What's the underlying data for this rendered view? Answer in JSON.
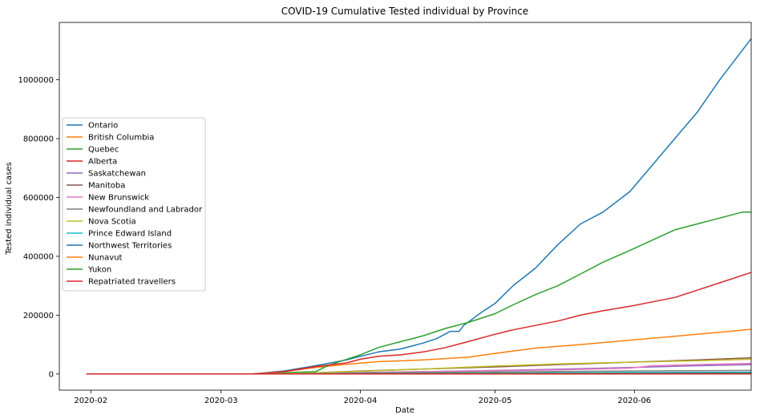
{
  "chart_data": {
    "type": "line",
    "title": "COVID-19 Cumulative Tested individual by Province",
    "xlabel": "Date",
    "ylabel": "Tested individual cases",
    "x_range": [
      "2020-01-25",
      "2020-06-27"
    ],
    "ylim": [
      -55000,
      1195000
    ],
    "x_ticks": [
      {
        "date": "2020-02-01",
        "label": "2020-02"
      },
      {
        "date": "2020-03-01",
        "label": "2020-03"
      },
      {
        "date": "2020-04-01",
        "label": "2020-04"
      },
      {
        "date": "2020-05-01",
        "label": "2020-05"
      },
      {
        "date": "2020-06-01",
        "label": "2020-06"
      }
    ],
    "y_ticks": [
      {
        "value": 0,
        "label": "0"
      },
      {
        "value": 200000,
        "label": "200000"
      },
      {
        "value": 400000,
        "label": "400000"
      },
      {
        "value": 600000,
        "label": "600000"
      },
      {
        "value": 800000,
        "label": "800000"
      },
      {
        "value": 1000000,
        "label": "1000000"
      }
    ],
    "grid": false,
    "legend_position": "center-left",
    "series": [
      {
        "name": "Ontario",
        "color": "#1f77b4",
        "points": [
          [
            "2020-01-31",
            0
          ],
          [
            "2020-03-01",
            0
          ],
          [
            "2020-03-08",
            0
          ],
          [
            "2020-03-15",
            10000
          ],
          [
            "2020-03-22",
            28000
          ],
          [
            "2020-03-29",
            48000
          ],
          [
            "2020-04-01",
            60000
          ],
          [
            "2020-04-05",
            75000
          ],
          [
            "2020-04-10",
            85000
          ],
          [
            "2020-04-15",
            105000
          ],
          [
            "2020-04-18",
            120000
          ],
          [
            "2020-04-21",
            145000
          ],
          [
            "2020-04-23",
            145000
          ],
          [
            "2020-04-24",
            165000
          ],
          [
            "2020-04-28",
            210000
          ],
          [
            "2020-05-01",
            240000
          ],
          [
            "2020-05-05",
            300000
          ],
          [
            "2020-05-10",
            360000
          ],
          [
            "2020-05-15",
            440000
          ],
          [
            "2020-05-20",
            510000
          ],
          [
            "2020-05-25",
            550000
          ],
          [
            "2020-05-31",
            620000
          ],
          [
            "2020-06-05",
            710000
          ],
          [
            "2020-06-10",
            800000
          ],
          [
            "2020-06-15",
            890000
          ],
          [
            "2020-06-20",
            1000000
          ],
          [
            "2020-06-25",
            1100000
          ],
          [
            "2020-06-27",
            1140000
          ]
        ]
      },
      {
        "name": "British Columbia",
        "color": "#ff7f0e",
        "points": [
          [
            "2020-01-31",
            0
          ],
          [
            "2020-03-01",
            0
          ],
          [
            "2020-03-08",
            0
          ],
          [
            "2020-03-15",
            8000
          ],
          [
            "2020-03-22",
            22000
          ],
          [
            "2020-03-29",
            33000
          ],
          [
            "2020-04-05",
            42000
          ],
          [
            "2020-04-15",
            48000
          ],
          [
            "2020-04-25",
            57000
          ],
          [
            "2020-05-01",
            70000
          ],
          [
            "2020-05-10",
            88000
          ],
          [
            "2020-05-20",
            100000
          ],
          [
            "2020-05-31",
            115000
          ],
          [
            "2020-06-10",
            128000
          ],
          [
            "2020-06-20",
            142000
          ],
          [
            "2020-06-27",
            152000
          ]
        ]
      },
      {
        "name": "Quebec",
        "color": "#2ca02c",
        "points": [
          [
            "2020-01-31",
            0
          ],
          [
            "2020-03-01",
            0
          ],
          [
            "2020-03-08",
            0
          ],
          [
            "2020-03-15",
            4000
          ],
          [
            "2020-03-22",
            8000
          ],
          [
            "2020-03-25",
            30000
          ],
          [
            "2020-03-29",
            50000
          ],
          [
            "2020-04-01",
            65000
          ],
          [
            "2020-04-05",
            90000
          ],
          [
            "2020-04-10",
            110000
          ],
          [
            "2020-04-15",
            130000
          ],
          [
            "2020-04-20",
            155000
          ],
          [
            "2020-04-25",
            175000
          ],
          [
            "2020-05-01",
            205000
          ],
          [
            "2020-05-05",
            235000
          ],
          [
            "2020-05-10",
            270000
          ],
          [
            "2020-05-15",
            300000
          ],
          [
            "2020-05-20",
            340000
          ],
          [
            "2020-05-25",
            380000
          ],
          [
            "2020-05-31",
            420000
          ],
          [
            "2020-06-05",
            455000
          ],
          [
            "2020-06-10",
            490000
          ],
          [
            "2020-06-15",
            510000
          ],
          [
            "2020-06-20",
            530000
          ],
          [
            "2020-06-25",
            550000
          ],
          [
            "2020-06-27",
            550000
          ]
        ]
      },
      {
        "name": "Alberta",
        "color": "#d62728",
        "points": [
          [
            "2020-01-31",
            0
          ],
          [
            "2020-03-01",
            0
          ],
          [
            "2020-03-08",
            0
          ],
          [
            "2020-03-15",
            8000
          ],
          [
            "2020-03-22",
            25000
          ],
          [
            "2020-03-29",
            38000
          ],
          [
            "2020-04-01",
            50000
          ],
          [
            "2020-04-05",
            60000
          ],
          [
            "2020-04-10",
            65000
          ],
          [
            "2020-04-15",
            75000
          ],
          [
            "2020-04-20",
            90000
          ],
          [
            "2020-04-25",
            110000
          ],
          [
            "2020-05-01",
            135000
          ],
          [
            "2020-05-05",
            150000
          ],
          [
            "2020-05-10",
            165000
          ],
          [
            "2020-05-15",
            180000
          ],
          [
            "2020-05-20",
            200000
          ],
          [
            "2020-05-25",
            215000
          ],
          [
            "2020-05-31",
            230000
          ],
          [
            "2020-06-05",
            245000
          ],
          [
            "2020-06-10",
            260000
          ],
          [
            "2020-06-15",
            285000
          ],
          [
            "2020-06-20",
            310000
          ],
          [
            "2020-06-27",
            345000
          ]
        ]
      },
      {
        "name": "Saskatchewan",
        "color": "#9467bd",
        "points": [
          [
            "2020-01-31",
            0
          ],
          [
            "2020-03-08",
            0
          ],
          [
            "2020-03-20",
            2000
          ],
          [
            "2020-04-01",
            5000
          ],
          [
            "2020-04-15",
            8000
          ],
          [
            "2020-05-01",
            12000
          ],
          [
            "2020-05-15",
            16000
          ],
          [
            "2020-05-31",
            22000
          ],
          [
            "2020-06-15",
            28000
          ],
          [
            "2020-06-27",
            32000
          ]
        ]
      },
      {
        "name": "Manitoba",
        "color": "#8c564b",
        "points": [
          [
            "2020-01-31",
            0
          ],
          [
            "2020-03-08",
            0
          ],
          [
            "2020-03-20",
            3000
          ],
          [
            "2020-04-01",
            10000
          ],
          [
            "2020-04-15",
            17000
          ],
          [
            "2020-05-01",
            24000
          ],
          [
            "2020-05-15",
            32000
          ],
          [
            "2020-05-31",
            40000
          ],
          [
            "2020-06-15",
            48000
          ],
          [
            "2020-06-27",
            55000
          ]
        ]
      },
      {
        "name": "New Brunswick",
        "color": "#e377c2",
        "points": [
          [
            "2020-01-31",
            0
          ],
          [
            "2020-03-08",
            0
          ],
          [
            "2020-03-20",
            1000
          ],
          [
            "2020-04-01",
            4000
          ],
          [
            "2020-04-15",
            8000
          ],
          [
            "2020-05-01",
            11000
          ],
          [
            "2020-05-15",
            14000
          ],
          [
            "2020-05-31",
            20000
          ],
          [
            "2020-06-05",
            28000
          ],
          [
            "2020-06-15",
            32000
          ],
          [
            "2020-06-27",
            36000
          ]
        ]
      },
      {
        "name": "Newfoundland and Labrador",
        "color": "#7f7f7f",
        "points": [
          [
            "2020-01-31",
            0
          ],
          [
            "2020-03-08",
            0
          ],
          [
            "2020-03-20",
            500
          ],
          [
            "2020-04-01",
            3000
          ],
          [
            "2020-04-15",
            5000
          ],
          [
            "2020-05-01",
            7000
          ],
          [
            "2020-05-31",
            10000
          ],
          [
            "2020-06-27",
            12000
          ]
        ]
      },
      {
        "name": "Nova Scotia",
        "color": "#bcbd22",
        "points": [
          [
            "2020-01-31",
            0
          ],
          [
            "2020-03-08",
            0
          ],
          [
            "2020-03-20",
            3000
          ],
          [
            "2020-04-01",
            9000
          ],
          [
            "2020-04-15",
            17000
          ],
          [
            "2020-05-01",
            27000
          ],
          [
            "2020-05-15",
            34000
          ],
          [
            "2020-05-31",
            40000
          ],
          [
            "2020-06-15",
            45000
          ],
          [
            "2020-06-27",
            50000
          ]
        ]
      },
      {
        "name": "Prince Edward Island",
        "color": "#17becf",
        "points": [
          [
            "2020-01-31",
            0
          ],
          [
            "2020-03-08",
            0
          ],
          [
            "2020-04-01",
            1000
          ],
          [
            "2020-05-01",
            3000
          ],
          [
            "2020-05-31",
            5000
          ],
          [
            "2020-06-27",
            6000
          ]
        ]
      },
      {
        "name": "Northwest Territories",
        "color": "#1f77b4",
        "points": [
          [
            "2020-01-31",
            0
          ],
          [
            "2020-03-08",
            0
          ],
          [
            "2020-04-01",
            1000
          ],
          [
            "2020-05-01",
            2000
          ],
          [
            "2020-05-31",
            3000
          ],
          [
            "2020-06-27",
            4000
          ]
        ]
      },
      {
        "name": "Nunavut",
        "color": "#ff7f0e",
        "points": [
          [
            "2020-01-31",
            0
          ],
          [
            "2020-03-08",
            0
          ],
          [
            "2020-04-01",
            300
          ],
          [
            "2020-05-01",
            700
          ],
          [
            "2020-06-27",
            1200
          ]
        ]
      },
      {
        "name": "Yukon",
        "color": "#2ca02c",
        "points": [
          [
            "2020-01-31",
            0
          ],
          [
            "2020-03-08",
            0
          ],
          [
            "2020-04-01",
            500
          ],
          [
            "2020-05-01",
            1000
          ],
          [
            "2020-06-27",
            1500
          ]
        ]
      },
      {
        "name": "Repatriated travellers",
        "color": "#d62728",
        "points": [
          [
            "2020-01-31",
            0
          ],
          [
            "2020-06-27",
            0
          ]
        ]
      }
    ]
  }
}
